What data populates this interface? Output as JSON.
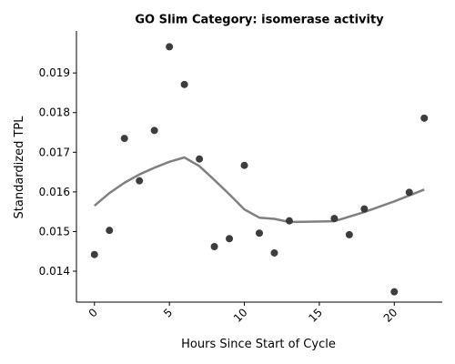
{
  "chart_data": {
    "type": "scatter",
    "title": "GO Slim Category: isomerase activity",
    "xlabel": "Hours Since Start of Cycle",
    "ylabel": "Standardized TPL",
    "xlim": [
      -1.2,
      23.2
    ],
    "ylim": [
      0.01322,
      0.02006
    ],
    "x_ticks": [
      0,
      5,
      10,
      15,
      20
    ],
    "x_tick_labels": [
      "0",
      "5",
      "10",
      "15",
      "20"
    ],
    "x_tick_rotation": 45,
    "y_ticks": [
      0.014,
      0.015,
      0.016,
      0.017,
      0.018,
      0.019
    ],
    "y_tick_labels": [
      "0.014",
      "0.015",
      "0.016",
      "0.017",
      "0.018",
      "0.019"
    ],
    "grid": false,
    "spines": "left-bottom",
    "series": [
      {
        "type": "scatter",
        "color": "#333333",
        "points": [
          {
            "x": 0,
            "y": 0.01442
          },
          {
            "x": 1,
            "y": 0.01503
          },
          {
            "x": 2,
            "y": 0.01735
          },
          {
            "x": 3,
            "y": 0.01628
          },
          {
            "x": 4,
            "y": 0.01755
          },
          {
            "x": 5,
            "y": 0.01966
          },
          {
            "x": 6,
            "y": 0.01871
          },
          {
            "x": 7,
            "y": 0.01683
          },
          {
            "x": 8,
            "y": 0.01462
          },
          {
            "x": 9,
            "y": 0.01482
          },
          {
            "x": 10,
            "y": 0.01667
          },
          {
            "x": 11,
            "y": 0.01496
          },
          {
            "x": 12,
            "y": 0.01446
          },
          {
            "x": 13,
            "y": 0.01527
          },
          {
            "x": 16,
            "y": 0.01533
          },
          {
            "x": 17,
            "y": 0.01492
          },
          {
            "x": 18,
            "y": 0.01557
          },
          {
            "x": 20,
            "y": 0.01348
          },
          {
            "x": 21,
            "y": 0.01599
          },
          {
            "x": 22,
            "y": 0.01786
          }
        ]
      },
      {
        "type": "line",
        "color": "#808080",
        "points": [
          {
            "x": 0,
            "y": 0.01565
          },
          {
            "x": 1,
            "y": 0.01597
          },
          {
            "x": 2,
            "y": 0.01623
          },
          {
            "x": 3,
            "y": 0.01644
          },
          {
            "x": 4,
            "y": 0.01661
          },
          {
            "x": 5,
            "y": 0.01676
          },
          {
            "x": 6,
            "y": 0.01687
          },
          {
            "x": 7,
            "y": 0.01665
          },
          {
            "x": 8,
            "y": 0.0163
          },
          {
            "x": 9,
            "y": 0.01594
          },
          {
            "x": 10,
            "y": 0.01556
          },
          {
            "x": 11,
            "y": 0.01535
          },
          {
            "x": 12,
            "y": 0.01532
          },
          {
            "x": 13,
            "y": 0.01524
          },
          {
            "x": 16,
            "y": 0.01526
          },
          {
            "x": 18,
            "y": 0.01549
          },
          {
            "x": 20,
            "y": 0.01576
          },
          {
            "x": 22,
            "y": 0.01606
          }
        ]
      }
    ]
  }
}
